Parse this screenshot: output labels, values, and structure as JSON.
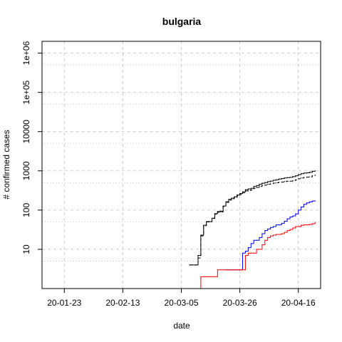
{
  "chart_data": {
    "type": "line",
    "title": "bulgaria",
    "xlabel": "date",
    "ylabel": "# confirmed cases",
    "y_scale": "log",
    "ylim": [
      1,
      2000000
    ],
    "xlim": [
      "2020-01-15",
      "2020-04-24"
    ],
    "x_ticks": [
      "2020-01-23",
      "2020-02-13",
      "2020-03-05",
      "2020-03-26",
      "2020-04-16"
    ],
    "x_tick_labels": [
      "20-01-23",
      "20-02-13",
      "20-03-05",
      "20-03-26",
      "20-04-16"
    ],
    "y_ticks": [
      10,
      100,
      1000,
      10000,
      100000,
      1000000
    ],
    "y_tick_labels": [
      "10",
      "100",
      "1000",
      "10000",
      "1e+05",
      "1e+06"
    ],
    "grid": true,
    "series": [
      {
        "color": "#000000",
        "style": "solid",
        "points": [
          [
            "2020-03-08",
            4
          ],
          [
            "2020-03-09",
            4
          ],
          [
            "2020-03-10",
            4
          ],
          [
            "2020-03-11",
            7
          ],
          [
            "2020-03-12",
            23
          ],
          [
            "2020-03-13",
            41
          ],
          [
            "2020-03-14",
            51
          ],
          [
            "2020-03-15",
            51
          ],
          [
            "2020-03-16",
            62
          ],
          [
            "2020-03-17",
            81
          ],
          [
            "2020-03-18",
            92
          ],
          [
            "2020-03-19",
            94
          ],
          [
            "2020-03-20",
            127
          ],
          [
            "2020-03-21",
            163
          ],
          [
            "2020-03-22",
            187
          ],
          [
            "2020-03-23",
            201
          ],
          [
            "2020-03-24",
            218
          ],
          [
            "2020-03-25",
            242
          ],
          [
            "2020-03-26",
            264
          ],
          [
            "2020-03-27",
            293
          ],
          [
            "2020-03-28",
            331
          ],
          [
            "2020-03-29",
            346
          ],
          [
            "2020-03-30",
            359
          ],
          [
            "2020-03-31",
            399
          ],
          [
            "2020-04-01",
            422
          ],
          [
            "2020-04-02",
            457
          ],
          [
            "2020-04-03",
            485
          ],
          [
            "2020-04-04",
            503
          ],
          [
            "2020-04-05",
            531
          ],
          [
            "2020-04-06",
            549
          ],
          [
            "2020-04-07",
            577
          ],
          [
            "2020-04-08",
            593
          ],
          [
            "2020-04-09",
            618
          ],
          [
            "2020-04-10",
            635
          ],
          [
            "2020-04-11",
            661
          ],
          [
            "2020-04-12",
            675
          ],
          [
            "2020-04-13",
            685
          ],
          [
            "2020-04-14",
            713
          ],
          [
            "2020-04-15",
            747
          ],
          [
            "2020-04-16",
            800
          ],
          [
            "2020-04-17",
            846
          ],
          [
            "2020-04-18",
            878
          ],
          [
            "2020-04-19",
            894
          ],
          [
            "2020-04-20",
            915
          ],
          [
            "2020-04-21",
            975
          ],
          [
            "2020-04-22",
            1000
          ]
        ]
      },
      {
        "color": "#000000",
        "style": "dashed",
        "points": [
          [
            "2020-03-08",
            4
          ],
          [
            "2020-03-09",
            4
          ],
          [
            "2020-03-10",
            4
          ],
          [
            "2020-03-11",
            6
          ],
          [
            "2020-03-12",
            22
          ],
          [
            "2020-03-13",
            40
          ],
          [
            "2020-03-14",
            50
          ],
          [
            "2020-03-15",
            50
          ],
          [
            "2020-03-16",
            61
          ],
          [
            "2020-03-17",
            78
          ],
          [
            "2020-03-18",
            88
          ],
          [
            "2020-03-19",
            90
          ],
          [
            "2020-03-20",
            122
          ],
          [
            "2020-03-21",
            157
          ],
          [
            "2020-03-22",
            180
          ],
          [
            "2020-03-23",
            194
          ],
          [
            "2020-03-24",
            209
          ],
          [
            "2020-03-25",
            231
          ],
          [
            "2020-03-26",
            250
          ],
          [
            "2020-03-27",
            275
          ],
          [
            "2020-03-28",
            307
          ],
          [
            "2020-03-29",
            318
          ],
          [
            "2020-03-30",
            326
          ],
          [
            "2020-03-31",
            360
          ],
          [
            "2020-04-01",
            376
          ],
          [
            "2020-04-02",
            403
          ],
          [
            "2020-04-03",
            423
          ],
          [
            "2020-04-04",
            434
          ],
          [
            "2020-04-05",
            456
          ],
          [
            "2020-04-06",
            468
          ],
          [
            "2020-04-07",
            487
          ],
          [
            "2020-04-08",
            496
          ],
          [
            "2020-04-09",
            512
          ],
          [
            "2020-04-10",
            519
          ],
          [
            "2020-04-11",
            538
          ],
          [
            "2020-04-12",
            543
          ],
          [
            "2020-04-13",
            546
          ],
          [
            "2020-04-14",
            567
          ],
          [
            "2020-04-15",
            592
          ],
          [
            "2020-04-16",
            630
          ],
          [
            "2020-04-17",
            660
          ],
          [
            "2020-04-18",
            680
          ],
          [
            "2020-04-19",
            690
          ],
          [
            "2020-04-20",
            703
          ],
          [
            "2020-04-21",
            755
          ],
          [
            "2020-04-22",
            780
          ]
        ]
      },
      {
        "color": "#0000ff",
        "style": "solid",
        "points": [
          [
            "2020-03-21",
            3
          ],
          [
            "2020-03-22",
            3
          ],
          [
            "2020-03-23",
            3
          ],
          [
            "2020-03-24",
            3
          ],
          [
            "2020-03-25",
            3
          ],
          [
            "2020-03-26",
            3
          ],
          [
            "2020-03-27",
            8
          ],
          [
            "2020-03-28",
            9
          ],
          [
            "2020-03-29",
            11
          ],
          [
            "2020-03-30",
            14
          ],
          [
            "2020-03-31",
            17
          ],
          [
            "2020-04-01",
            17
          ],
          [
            "2020-04-02",
            20
          ],
          [
            "2020-04-03",
            25
          ],
          [
            "2020-04-04",
            30
          ],
          [
            "2020-04-05",
            33
          ],
          [
            "2020-04-06",
            36
          ],
          [
            "2020-04-07",
            38
          ],
          [
            "2020-04-08",
            42
          ],
          [
            "2020-04-09",
            42
          ],
          [
            "2020-04-10",
            46
          ],
          [
            "2020-04-11",
            52
          ],
          [
            "2020-04-12",
            60
          ],
          [
            "2020-04-13",
            67
          ],
          [
            "2020-04-14",
            71
          ],
          [
            "2020-04-15",
            80
          ],
          [
            "2020-04-16",
            100
          ],
          [
            "2020-04-17",
            120
          ],
          [
            "2020-04-18",
            140
          ],
          [
            "2020-04-19",
            153
          ],
          [
            "2020-04-20",
            162
          ],
          [
            "2020-04-21",
            170
          ],
          [
            "2020-04-22",
            172
          ]
        ]
      },
      {
        "color": "#ff0000",
        "style": "solid",
        "points": [
          [
            "2020-03-08",
            1
          ],
          [
            "2020-03-09",
            1
          ],
          [
            "2020-03-10",
            1
          ],
          [
            "2020-03-11",
            1
          ],
          [
            "2020-03-12",
            2
          ],
          [
            "2020-03-13",
            2
          ],
          [
            "2020-03-14",
            2
          ],
          [
            "2020-03-15",
            2
          ],
          [
            "2020-03-16",
            2
          ],
          [
            "2020-03-17",
            2
          ],
          [
            "2020-03-18",
            3
          ],
          [
            "2020-03-19",
            3
          ],
          [
            "2020-03-20",
            3
          ],
          [
            "2020-03-21",
            3
          ],
          [
            "2020-03-22",
            3
          ],
          [
            "2020-03-23",
            3
          ],
          [
            "2020-03-24",
            3
          ],
          [
            "2020-03-25",
            3
          ],
          [
            "2020-03-26",
            3
          ],
          [
            "2020-03-27",
            3
          ],
          [
            "2020-03-28",
            7
          ],
          [
            "2020-03-29",
            8
          ],
          [
            "2020-03-30",
            8
          ],
          [
            "2020-03-31",
            8
          ],
          [
            "2020-04-01",
            10
          ],
          [
            "2020-04-02",
            10
          ],
          [
            "2020-04-03",
            13
          ],
          [
            "2020-04-04",
            17
          ],
          [
            "2020-04-05",
            20
          ],
          [
            "2020-04-06",
            22
          ],
          [
            "2020-04-07",
            23
          ],
          [
            "2020-04-08",
            24
          ],
          [
            "2020-04-09",
            24
          ],
          [
            "2020-04-10",
            25
          ],
          [
            "2020-04-11",
            27
          ],
          [
            "2020-04-12",
            30
          ],
          [
            "2020-04-13",
            32
          ],
          [
            "2020-04-14",
            35
          ],
          [
            "2020-04-15",
            38
          ],
          [
            "2020-04-16",
            38
          ],
          [
            "2020-04-17",
            41
          ],
          [
            "2020-04-18",
            42
          ],
          [
            "2020-04-19",
            42
          ],
          [
            "2020-04-20",
            43
          ],
          [
            "2020-04-21",
            45
          ],
          [
            "2020-04-22",
            49
          ]
        ]
      }
    ]
  }
}
